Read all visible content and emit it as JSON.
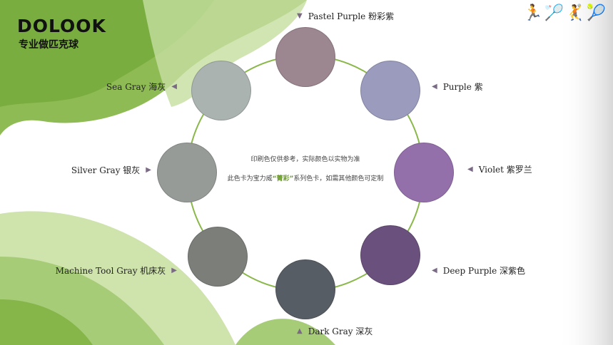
{
  "brand": {
    "logo": "DOLOOK",
    "slogan": "专业做匹克球"
  },
  "sports_icons": "pickleball-players-icons",
  "note": {
    "line1": "印刷色仅供参考，实际颜色以实物为准",
    "line2_pre": "此色卡为宝力威",
    "line2_highlight": "“菁彩”",
    "line2_post": "系列色卡，如需其他颜色可定制"
  },
  "colors": [
    {
      "label": "Pastel Purple 粉彩紫",
      "hex": "#9c8690"
    },
    {
      "label": "Purple 紫",
      "hex": "#9a9bbd"
    },
    {
      "label": "Violet 紫罗兰",
      "hex": "#9470ab"
    },
    {
      "label": "Deep Purple 深紫色",
      "hex": "#6a507c"
    },
    {
      "label": "Dark Gray 深灰",
      "hex": "#575d64"
    },
    {
      "label": "Machine Tool Gray 机床灰",
      "hex": "#7b7e79"
    },
    {
      "label": "Silver Gray 银灰",
      "hex": "#969b98"
    },
    {
      "label": "Sea Gray 海灰",
      "hex": "#aab3b0"
    }
  ],
  "ring_color": "#8ab84a"
}
